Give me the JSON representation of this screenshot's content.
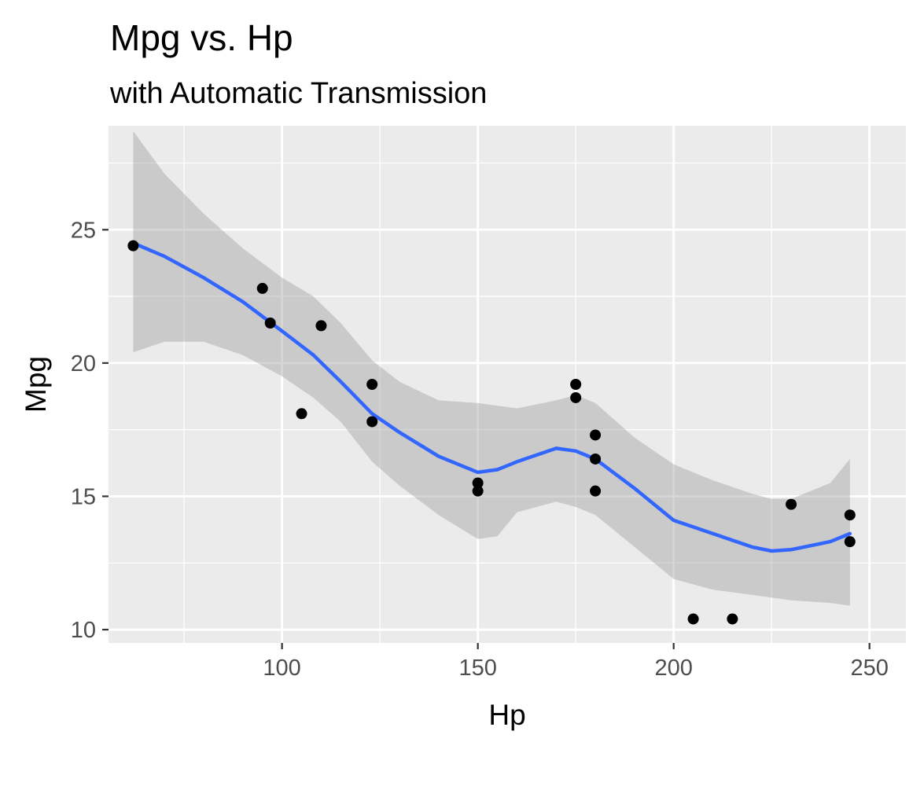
{
  "chart_data": {
    "type": "scatter",
    "title": "Mpg vs. Hp",
    "subtitle": "with Automatic Transmission",
    "xlabel": "Hp",
    "ylabel": "Mpg",
    "xlim": [
      55.7,
      259.3
    ],
    "ylim": [
      9.5,
      28.9
    ],
    "x_ticks": [
      100,
      150,
      200,
      250
    ],
    "y_ticks": [
      10,
      15,
      20,
      25
    ],
    "x_minor_ticks": [
      75,
      125,
      175,
      225
    ],
    "y_minor_ticks": [
      12.5,
      17.5,
      22.5,
      27.5
    ],
    "grid": true,
    "legend": "none",
    "colors": {
      "panel": "#ebebeb",
      "grid": "#ffffff",
      "points": "#000000",
      "smooth_line": "#3366ff",
      "confidence_band": "#999999"
    },
    "points": [
      {
        "x": 62,
        "y": 24.4
      },
      {
        "x": 95,
        "y": 22.8
      },
      {
        "x": 97,
        "y": 21.5
      },
      {
        "x": 105,
        "y": 18.1
      },
      {
        "x": 110,
        "y": 21.4
      },
      {
        "x": 123,
        "y": 19.2
      },
      {
        "x": 123,
        "y": 17.8
      },
      {
        "x": 150,
        "y": 15.5
      },
      {
        "x": 150,
        "y": 15.2
      },
      {
        "x": 175,
        "y": 19.2
      },
      {
        "x": 175,
        "y": 18.7
      },
      {
        "x": 180,
        "y": 17.3
      },
      {
        "x": 180,
        "y": 16.4
      },
      {
        "x": 180,
        "y": 15.2
      },
      {
        "x": 205,
        "y": 10.4
      },
      {
        "x": 215,
        "y": 10.4
      },
      {
        "x": 230,
        "y": 14.7
      },
      {
        "x": 245,
        "y": 14.3
      },
      {
        "x": 245,
        "y": 13.3
      }
    ],
    "smooth": {
      "method": "loess",
      "x": [
        62,
        70,
        80,
        90,
        100,
        108,
        115,
        123,
        130,
        140,
        150,
        155,
        160,
        170,
        175,
        180,
        190,
        200,
        210,
        220,
        225,
        230,
        240,
        245
      ],
      "y": [
        24.5,
        24.0,
        23.2,
        22.3,
        21.2,
        20.3,
        19.3,
        18.1,
        17.4,
        16.5,
        15.9,
        16.0,
        16.3,
        16.8,
        16.7,
        16.4,
        15.3,
        14.1,
        13.6,
        13.1,
        12.95,
        13.0,
        13.3,
        13.6
      ],
      "lower": [
        20.4,
        20.8,
        20.8,
        20.3,
        19.5,
        18.7,
        17.8,
        16.3,
        15.4,
        14.3,
        13.4,
        13.5,
        14.4,
        14.8,
        14.6,
        14.3,
        13.1,
        11.9,
        11.5,
        11.3,
        11.2,
        11.1,
        11.0,
        10.9
      ],
      "upper": [
        28.7,
        27.1,
        25.6,
        24.3,
        23.2,
        22.5,
        21.5,
        20.1,
        19.3,
        18.6,
        18.5,
        18.4,
        18.3,
        18.6,
        18.8,
        18.5,
        17.2,
        16.2,
        15.6,
        15.1,
        14.9,
        14.9,
        15.5,
        16.4
      ]
    }
  }
}
